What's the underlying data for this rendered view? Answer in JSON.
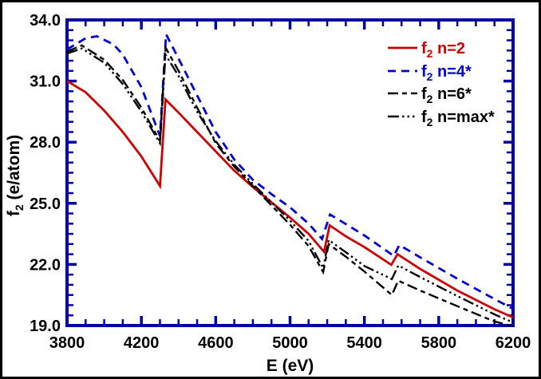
{
  "figure": {
    "background": "#ffffff",
    "border_color": "#000000"
  },
  "chart_data": {
    "type": "line",
    "title": "",
    "xlabel": "E  (eV)",
    "ylabel_parts": {
      "base": "f",
      "sub": "2",
      "rest": " (e/atom)"
    },
    "xlim": [
      3800,
      6200
    ],
    "ylim": [
      19.0,
      34.0
    ],
    "x_major_ticks": [
      3800,
      4200,
      4600,
      5000,
      5400,
      5800,
      6200
    ],
    "x_tick_labels": [
      "3800",
      "4200",
      "4600",
      "5000",
      "5400",
      "5800",
      "6200"
    ],
    "x_minor_step": 100,
    "y_major_ticks": [
      19,
      22,
      25,
      28,
      31,
      34
    ],
    "y_tick_labels": [
      "19.0",
      "22.0",
      "25.0",
      "28.0",
      "31.0",
      "34.0"
    ],
    "y_minor_step": 0.5,
    "axis_color": "#0000A0",
    "tick_label_color": "#000000",
    "grid": false,
    "legend_position": "upper-right",
    "series": [
      {
        "name": "f2 n=2",
        "label_parts": {
          "base": "f",
          "sub": "2",
          "rest": " n=2"
        },
        "color": "#CC0000",
        "style": "solid",
        "dash": "",
        "width": 2.8,
        "points": [
          [
            3800,
            31.0
          ],
          [
            3900,
            30.45
          ],
          [
            4000,
            29.55
          ],
          [
            4100,
            28.5
          ],
          [
            4200,
            27.3
          ],
          [
            4300,
            25.85
          ],
          [
            4330,
            30.1
          ],
          [
            4400,
            29.45
          ],
          [
            4500,
            28.5
          ],
          [
            4600,
            27.55
          ],
          [
            4700,
            26.6
          ],
          [
            4800,
            25.8
          ],
          [
            4900,
            25.05
          ],
          [
            5000,
            24.3
          ],
          [
            5100,
            23.5
          ],
          [
            5183,
            22.62
          ],
          [
            5213,
            23.92
          ],
          [
            5300,
            23.38
          ],
          [
            5400,
            22.85
          ],
          [
            5545,
            21.98
          ],
          [
            5578,
            22.5
          ],
          [
            5700,
            21.78
          ],
          [
            5900,
            20.72
          ],
          [
            6100,
            19.8
          ],
          [
            6200,
            19.4
          ]
        ]
      },
      {
        "name": "f2 n=4*",
        "label_parts": {
          "base": "f",
          "sub": "2",
          "rest": " n=4*"
        },
        "color": "#0000CD",
        "style": "dashed",
        "dash": "10,7",
        "width": 2.8,
        "points": [
          [
            3800,
            32.55
          ],
          [
            3900,
            33.1
          ],
          [
            3960,
            33.2
          ],
          [
            4050,
            32.8
          ],
          [
            4100,
            32.3
          ],
          [
            4200,
            30.7
          ],
          [
            4300,
            28.3
          ],
          [
            4333,
            33.3
          ],
          [
            4400,
            32.1
          ],
          [
            4500,
            30.3
          ],
          [
            4600,
            28.5
          ],
          [
            4700,
            27.15
          ],
          [
            4800,
            26.15
          ],
          [
            4900,
            25.45
          ],
          [
            5000,
            24.8
          ],
          [
            5100,
            24.0
          ],
          [
            5172,
            23.25
          ],
          [
            5215,
            24.45
          ],
          [
            5300,
            23.98
          ],
          [
            5400,
            23.42
          ],
          [
            5558,
            22.42
          ],
          [
            5588,
            22.95
          ],
          [
            5700,
            22.35
          ],
          [
            5900,
            21.3
          ],
          [
            6100,
            20.3
          ],
          [
            6200,
            19.82
          ]
        ]
      },
      {
        "name": "f2 n=6*",
        "label_parts": {
          "base": "f",
          "sub": "2",
          "rest": " n=6*"
        },
        "color": "#000000",
        "style": "dash-dash",
        "dash": "13,5,6,5",
        "width": 2.4,
        "points": [
          [
            3800,
            32.45
          ],
          [
            3880,
            32.75
          ],
          [
            4000,
            32.05
          ],
          [
            4100,
            31.05
          ],
          [
            4200,
            29.7
          ],
          [
            4300,
            28.05
          ],
          [
            4330,
            32.65
          ],
          [
            4400,
            31.5
          ],
          [
            4500,
            29.7
          ],
          [
            4600,
            27.95
          ],
          [
            4700,
            26.8
          ],
          [
            4800,
            25.85
          ],
          [
            4900,
            24.9
          ],
          [
            5000,
            23.95
          ],
          [
            5100,
            22.9
          ],
          [
            5178,
            21.62
          ],
          [
            5208,
            23.0
          ],
          [
            5300,
            22.38
          ],
          [
            5400,
            21.65
          ],
          [
            5548,
            20.5
          ],
          [
            5582,
            21.2
          ],
          [
            5700,
            20.72
          ],
          [
            5900,
            19.95
          ],
          [
            6100,
            19.2
          ],
          [
            6200,
            18.97
          ]
        ]
      },
      {
        "name": "f2 n=max*",
        "label_parts": {
          "base": "f",
          "sub": "2",
          "rest": " n=max*"
        },
        "color": "#000000",
        "style": "dash-dot-dot",
        "dash": "14,4,2.5,4,2.5,4,2.5,4",
        "width": 2.4,
        "points": [
          [
            3800,
            32.35
          ],
          [
            3880,
            32.6
          ],
          [
            4000,
            31.9
          ],
          [
            4100,
            30.85
          ],
          [
            4200,
            29.5
          ],
          [
            4300,
            27.95
          ],
          [
            4330,
            32.3
          ],
          [
            4400,
            31.25
          ],
          [
            4500,
            29.5
          ],
          [
            4600,
            28.05
          ],
          [
            4700,
            26.9
          ],
          [
            4800,
            25.95
          ],
          [
            4900,
            25.05
          ],
          [
            5000,
            24.15
          ],
          [
            5100,
            23.15
          ],
          [
            5178,
            21.82
          ],
          [
            5208,
            23.2
          ],
          [
            5300,
            22.6
          ],
          [
            5400,
            21.92
          ],
          [
            5548,
            21.28
          ],
          [
            5582,
            21.95
          ],
          [
            5700,
            21.38
          ],
          [
            5900,
            20.45
          ],
          [
            6100,
            19.55
          ],
          [
            6200,
            19.15
          ]
        ]
      }
    ]
  }
}
